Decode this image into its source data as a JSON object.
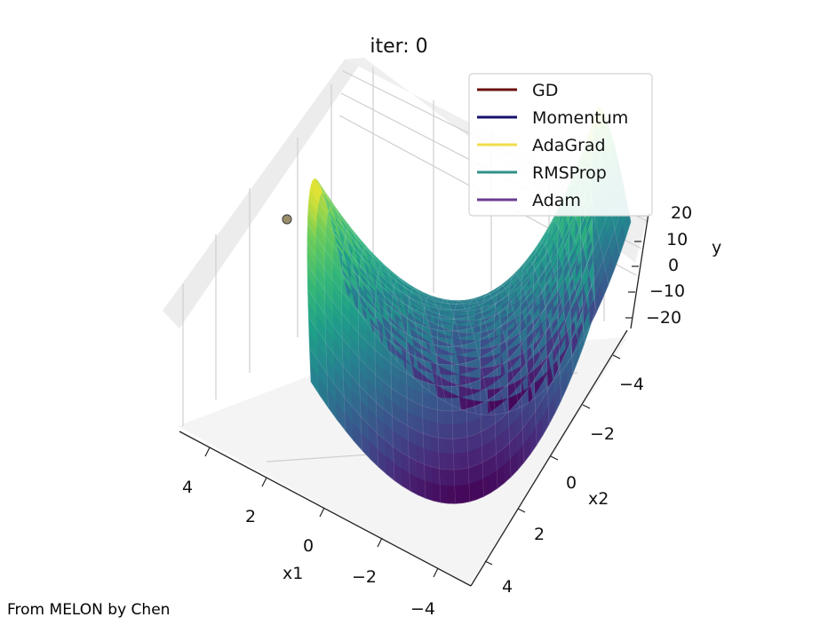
{
  "chart_data": {
    "type": "surface3d",
    "title": "iter: 0",
    "xlabel": "x1",
    "ylabel": "x2",
    "zlabel": "y",
    "x1_ticks": [
      "4",
      "2",
      "0",
      "−2",
      "−4"
    ],
    "x2_ticks": [
      "−4",
      "−2",
      "0",
      "2",
      "4"
    ],
    "z_ticks": [
      "20",
      "10",
      "0",
      "−10",
      "−20"
    ],
    "x1_range": [
      -5,
      5
    ],
    "x2_range": [
      -5,
      5
    ],
    "z_range": [
      -25,
      25
    ],
    "surface": "y = x1^2 - x2^2",
    "colormap": "viridis",
    "grid": true,
    "legend_placement": "top-right",
    "series": [
      {
        "name": "GD",
        "color": "#6b1010"
      },
      {
        "name": "Momentum",
        "color": "#15106b"
      },
      {
        "name": "AdaGrad",
        "color": "#f2dd4c"
      },
      {
        "name": "RMSProp",
        "color": "#2f9188"
      },
      {
        "name": "Adam",
        "color": "#6a3d8f"
      }
    ],
    "start_point": {
      "x1": -4,
      "x2": -2
    }
  },
  "footer": {
    "credit": "From MELON by Chen"
  }
}
